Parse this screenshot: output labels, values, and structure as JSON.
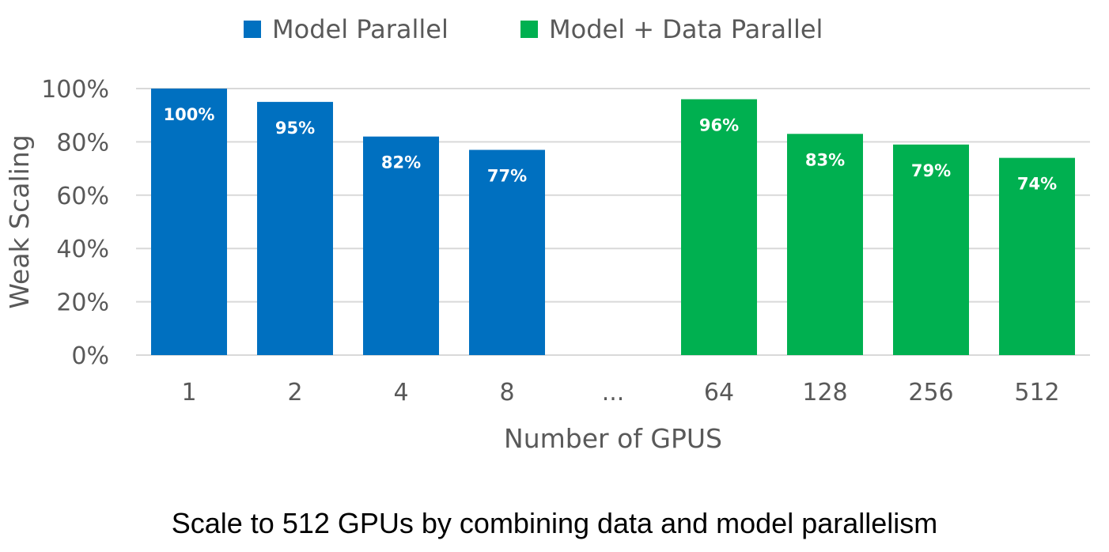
{
  "chart_data": {
    "type": "bar",
    "title": "",
    "xlabel": "Number of GPUS",
    "ylabel": "Weak Scaling",
    "ylim": [
      0,
      100
    ],
    "yticks": [
      "0%",
      "20%",
      "40%",
      "60%",
      "80%",
      "100%"
    ],
    "ytick_values": [
      0,
      20,
      40,
      60,
      80,
      100
    ],
    "grid": true,
    "legend_position": "top",
    "categories": [
      "1",
      "2",
      "4",
      "8",
      "...",
      "64",
      "128",
      "256",
      "512"
    ],
    "series": [
      {
        "name": "Model Parallel",
        "color": "#0070C0",
        "values": [
          100,
          95,
          82,
          77,
          null,
          null,
          null,
          null,
          null
        ],
        "labels": [
          "100%",
          "95%",
          "82%",
          "77%",
          "",
          "",
          "",
          "",
          ""
        ]
      },
      {
        "name": "Model + Data Parallel",
        "color": "#00B050",
        "values": [
          null,
          null,
          null,
          null,
          null,
          96,
          83,
          79,
          74
        ],
        "labels": [
          "",
          "",
          "",
          "",
          "",
          "96%",
          "83%",
          "79%",
          "74%"
        ]
      }
    ]
  },
  "caption": "Scale to 512 GPUs by combining data and model parallelism",
  "colors": {
    "grid": "#D9D9D9",
    "axis_text": "#595959",
    "bar_label": "#FFFFFF"
  }
}
